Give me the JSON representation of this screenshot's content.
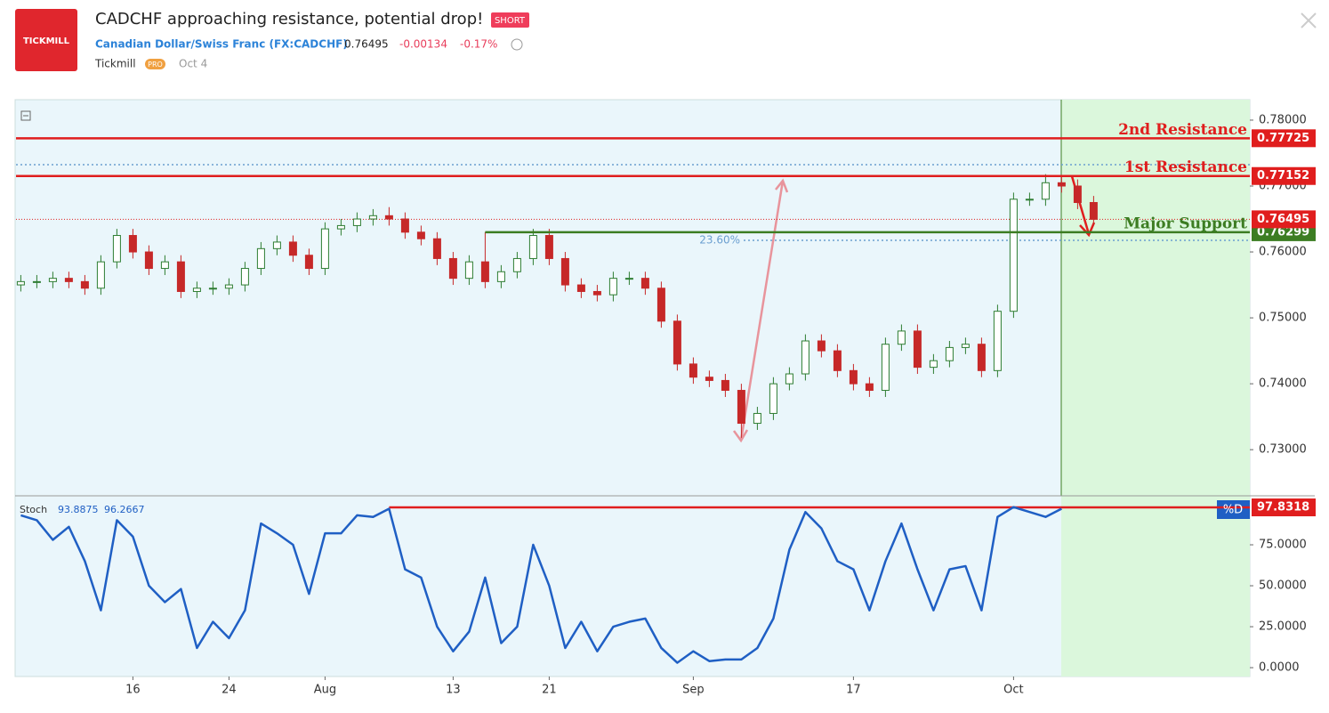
{
  "header": {
    "logo": "TICKMILL",
    "title": "CADCHF approaching resistance, potential drop!",
    "badge": "SHORT",
    "symbol": "Canadian Dollar/Swiss Franc (FX:CADCHF)",
    "price": "0.76495",
    "change": "-0.00134",
    "change_pct": "-0.17%",
    "author": "Tickmill",
    "author_badge": "PRO",
    "date": "Oct 4"
  },
  "chart_data": [
    {
      "type": "candlestick",
      "categories": [
        null,
        null,
        null,
        null,
        null,
        null,
        null,
        "16",
        null,
        null,
        null,
        null,
        null,
        "24",
        null,
        null,
        null,
        null,
        null,
        "Aug",
        null,
        null,
        null,
        null,
        null,
        null,
        null,
        "13",
        null,
        null,
        null,
        null,
        null,
        "21",
        null,
        null,
        null,
        null,
        null,
        null,
        null,
        null,
        "Sep",
        null,
        null,
        null,
        null,
        null,
        null,
        null,
        null,
        null,
        "17",
        null,
        null,
        null,
        null,
        null,
        null,
        null,
        null,
        null,
        "Oct",
        null,
        null,
        null,
        null,
        null
      ],
      "open": [
        0.755,
        0.7555,
        0.7555,
        0.756,
        0.7555,
        0.7545,
        0.7585,
        0.7625,
        0.76,
        0.7575,
        0.7585,
        0.754,
        0.7545,
        0.7545,
        0.755,
        0.7575,
        0.7605,
        0.7615,
        0.7595,
        0.7575,
        0.7635,
        0.764,
        0.765,
        0.7655,
        0.765,
        0.763,
        0.762,
        0.759,
        0.756,
        0.7585,
        0.7555,
        0.757,
        0.759,
        0.7625,
        0.759,
        0.755,
        0.754,
        0.7535,
        0.756,
        0.756,
        0.7545,
        0.7495,
        0.743,
        0.741,
        0.7405,
        0.739,
        0.734,
        0.7355,
        0.74,
        0.7415,
        0.7465,
        0.745,
        0.742,
        0.74,
        0.739,
        0.746,
        0.748,
        0.7425,
        0.7435,
        0.7455,
        0.746,
        0.742,
        0.751,
        0.768,
        0.768,
        0.7705,
        0.77,
        0.7675
      ],
      "high": [
        0.7565,
        0.7565,
        0.757,
        0.757,
        0.7565,
        0.7595,
        0.7635,
        0.7635,
        0.761,
        0.7595,
        0.7595,
        0.7555,
        0.7555,
        0.756,
        0.7585,
        0.7615,
        0.7625,
        0.7625,
        0.7605,
        0.7645,
        0.765,
        0.766,
        0.7665,
        0.7668,
        0.766,
        0.764,
        0.763,
        0.76,
        0.7595,
        0.763,
        0.758,
        0.76,
        0.7635,
        0.7635,
        0.76,
        0.756,
        0.755,
        0.757,
        0.757,
        0.757,
        0.7555,
        0.7505,
        0.744,
        0.742,
        0.7415,
        0.74,
        0.7365,
        0.741,
        0.7425,
        0.7475,
        0.7475,
        0.746,
        0.743,
        0.741,
        0.747,
        0.749,
        0.749,
        0.7445,
        0.7465,
        0.747,
        0.747,
        0.752,
        0.769,
        0.769,
        0.7718,
        0.7715,
        0.771,
        0.7685
      ],
      "low": [
        0.754,
        0.7545,
        0.7545,
        0.7545,
        0.7535,
        0.7535,
        0.7575,
        0.759,
        0.7565,
        0.7565,
        0.753,
        0.753,
        0.7535,
        0.7535,
        0.754,
        0.7565,
        0.7595,
        0.7585,
        0.7565,
        0.7565,
        0.7625,
        0.763,
        0.764,
        0.764,
        0.762,
        0.761,
        0.758,
        0.755,
        0.755,
        0.7545,
        0.7545,
        0.756,
        0.758,
        0.758,
        0.754,
        0.753,
        0.7525,
        0.7525,
        0.755,
        0.7535,
        0.7485,
        0.742,
        0.74,
        0.7395,
        0.738,
        0.7318,
        0.733,
        0.7345,
        0.739,
        0.7405,
        0.744,
        0.741,
        0.739,
        0.738,
        0.738,
        0.745,
        0.7415,
        0.7415,
        0.7425,
        0.7445,
        0.741,
        0.741,
        0.75,
        0.767,
        0.767,
        0.769,
        0.7665,
        0.764
      ],
      "close": [
        0.7555,
        0.7555,
        0.756,
        0.7555,
        0.7545,
        0.7585,
        0.7625,
        0.76,
        0.7575,
        0.7585,
        0.754,
        0.7545,
        0.7545,
        0.755,
        0.7575,
        0.7605,
        0.7615,
        0.7595,
        0.7575,
        0.7635,
        0.764,
        0.765,
        0.7655,
        0.765,
        0.763,
        0.762,
        0.759,
        0.756,
        0.7585,
        0.7555,
        0.757,
        0.759,
        0.7625,
        0.759,
        0.755,
        0.754,
        0.7535,
        0.756,
        0.756,
        0.7545,
        0.7495,
        0.743,
        0.741,
        0.7405,
        0.739,
        0.734,
        0.7355,
        0.74,
        0.7415,
        0.7465,
        0.745,
        0.742,
        0.74,
        0.739,
        0.746,
        0.748,
        0.7425,
        0.7435,
        0.7455,
        0.746,
        0.742,
        0.751,
        0.768,
        0.768,
        0.7705,
        0.77,
        0.7675,
        0.76495
      ],
      "up_color": "#2e7d32",
      "down_color": "#c62828",
      "ylim": [
        0.723,
        0.7831
      ],
      "yticks": [
        {
          "value": 0.78,
          "label": "0.78000"
        },
        {
          "value": 0.77,
          "label": "0.77000"
        },
        {
          "value": 0.76,
          "label": "0.76000"
        },
        {
          "value": 0.75,
          "label": "0.75000"
        },
        {
          "value": 0.74,
          "label": "0.74000"
        },
        {
          "value": 0.73,
          "label": "0.73000"
        }
      ],
      "levels": [
        {
          "name": "2nd Resistance",
          "value": 0.77725,
          "color": "#e01e1e"
        },
        {
          "name": "1st Resistance",
          "value": 0.77152,
          "color": "#e01e1e"
        },
        {
          "name": "Major Support",
          "value": 0.76299,
          "color": "#3c7d22"
        }
      ],
      "current_price": 0.76495,
      "current_color": "#e01e1e",
      "fib_label": "23.60%",
      "fib_value": 0.76176,
      "zone_top": 0.77324
    },
    {
      "type": "line",
      "name": "Stoch",
      "k_value": "93.8875",
      "d_value": "96.2667",
      "color": "#1f5fc4",
      "values": [
        93,
        90,
        78,
        86,
        65,
        35,
        90,
        80,
        50,
        40,
        48,
        12,
        28,
        18,
        35,
        88,
        82,
        75,
        45,
        82,
        82,
        93,
        92,
        97,
        60,
        55,
        25,
        10,
        22,
        55,
        15,
        25,
        75,
        50,
        12,
        28,
        10,
        25,
        28,
        30,
        12,
        3,
        10,
        4,
        5,
        5,
        12,
        30,
        72,
        95,
        85,
        65,
        60,
        35,
        65,
        88,
        60,
        35,
        60,
        62,
        35,
        92,
        98,
        95,
        92,
        97,
        null,
        null
      ],
      "ylim": [
        -5.4,
        104.9
      ],
      "yticks": [
        {
          "value": 0,
          "label": "0.0000"
        },
        {
          "value": 25,
          "label": "25.0000"
        },
        {
          "value": 50,
          "label": "50.0000"
        },
        {
          "value": 75,
          "label": "75.0000"
        }
      ],
      "level": 97.8318,
      "level_color": "#e01e1e",
      "tag": "%D"
    }
  ]
}
